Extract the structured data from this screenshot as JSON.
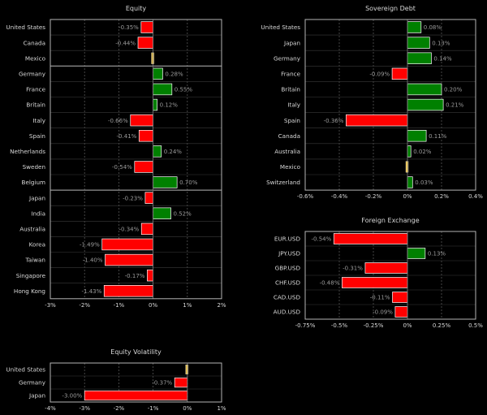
{
  "chart_data": [
    {
      "type": "bar",
      "orientation": "horizontal",
      "title": "Equity",
      "unit": "%",
      "xlim": [
        -3,
        2
      ],
      "xticks": [
        "-3%",
        "-2%",
        "-1%",
        "0%",
        "1%",
        "2%"
      ],
      "grid": true,
      "groups": [
        3,
        8,
        7
      ],
      "categories": [
        "United States",
        "Canada",
        "Mexico",
        "Germany",
        "France",
        "Britain",
        "Italy",
        "Spain",
        "Netherlands",
        "Sweden",
        "Belgium",
        "Japan",
        "India",
        "Australia",
        "Korea",
        "Taiwan",
        "Singapore",
        "Hong Kong"
      ],
      "values": [
        -0.35,
        -0.44,
        0,
        0.28,
        0.55,
        0.12,
        -0.66,
        -0.41,
        0.24,
        -0.54,
        0.7,
        -0.23,
        0.52,
        -0.34,
        -1.49,
        -1.4,
        -0.17,
        -1.43
      ],
      "labels": [
        "-0.35%",
        "-0.44%",
        "",
        "0.28%",
        "0.55%",
        "0.12%",
        "-0.66%",
        "-0.41%",
        "0.24%",
        "-0.54%",
        "0.70%",
        "-0.23%",
        "0.52%",
        "-0.34%",
        "-1.49%",
        "-1.40%",
        "-0.17%",
        "-1.43%"
      ]
    },
    {
      "type": "bar",
      "orientation": "horizontal",
      "title": "Sovereign Debt",
      "unit": "%",
      "xlim": [
        -0.6,
        0.4
      ],
      "xticks": [
        "-0.6%",
        "-0.4%",
        "-0.2%",
        "0%",
        "0.2%",
        "0.4%"
      ],
      "grid": true,
      "groups": [
        11
      ],
      "categories": [
        "United States",
        "Japan",
        "Germany",
        "France",
        "Britain",
        "Italy",
        "Spain",
        "Canada",
        "Australia",
        "Mexico",
        "Switzerland"
      ],
      "values": [
        0.08,
        0.13,
        0.14,
        -0.09,
        0.2,
        0.21,
        -0.36,
        0.11,
        0.02,
        0,
        0.03
      ],
      "labels": [
        "0.08%",
        "0.13%",
        "0.14%",
        "-0.09%",
        "0.20%",
        "0.21%",
        "-0.36%",
        "0.11%",
        "0.02%",
        "",
        "0.03%"
      ]
    },
    {
      "type": "bar",
      "orientation": "horizontal",
      "title": "Foreign Exchange",
      "unit": "%",
      "xlim": [
        -0.75,
        0.5
      ],
      "xticks": [
        "-0.75%",
        "-0.5%",
        "-0.25%",
        "0%",
        "0.25%",
        "0.5%"
      ],
      "grid": true,
      "groups": [
        6
      ],
      "categories": [
        "EUR.USD",
        "JPY.USD",
        "GBP.USD",
        "CHF.USD",
        "CAD.USD",
        "AUD.USD"
      ],
      "values": [
        -0.54,
        0.13,
        -0.31,
        -0.48,
        -0.11,
        -0.09
      ],
      "labels": [
        "-0.54%",
        "0.13%",
        "-0.31%",
        "-0.48%",
        "-0.11%",
        "-0.09%"
      ]
    },
    {
      "type": "bar",
      "orientation": "horizontal",
      "title": "Equity Volatility",
      "unit": "%",
      "xlim": [
        -4,
        1
      ],
      "xticks": [
        "-4%",
        "-3%",
        "-2%",
        "-1%",
        "0%",
        "1%"
      ],
      "grid": true,
      "groups": [
        3
      ],
      "categories": [
        "United States",
        "Germany",
        "Japan"
      ],
      "values": [
        0,
        -0.37,
        -3.0
      ],
      "labels": [
        "",
        "-0.37%",
        "-3.00%"
      ]
    }
  ],
  "colors": {
    "positive": "#008000",
    "negative": "#ff0000",
    "zero": "#ffd24a",
    "background": "#000000",
    "frame": "#b4b4b4",
    "grid": "#555555",
    "text": "#d8d8d8"
  }
}
